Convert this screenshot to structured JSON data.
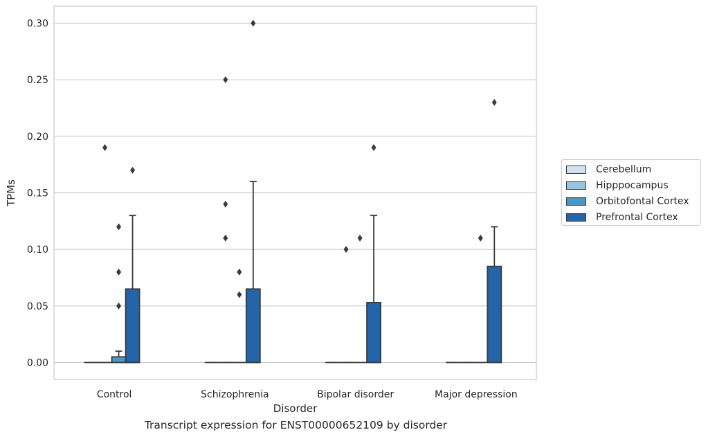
{
  "caption": "Transcript expression for ENST00000652109 by disorder",
  "colors": {
    "Cerebellum": "#d0e1f2",
    "Hipppocampus": "#94c4df",
    "Orbitofontal Cortex": "#4a98c9",
    "Prefrontal Cortex": "#2464a8",
    "grid": "#cccccc",
    "box_edge": "#3a3a3a"
  },
  "chart_data": {
    "type": "boxplot",
    "xlabel": "Disorder",
    "ylabel": "TPMs",
    "ylim": [
      -0.015,
      0.315
    ],
    "yticks": [
      0.0,
      0.05,
      0.1,
      0.15,
      0.2,
      0.25,
      0.3
    ],
    "ytick_labels": [
      "0.00",
      "0.05",
      "0.10",
      "0.15",
      "0.20",
      "0.25",
      "0.30"
    ],
    "grid": true,
    "legend_position": "right",
    "categories": [
      "Control",
      "Schizophrenia",
      "Bipolar disorder",
      "Major depression"
    ],
    "hue_order": [
      "Cerebellum",
      "Hipppocampus",
      "Orbitofontal Cortex",
      "Prefrontal Cortex"
    ],
    "boxes": [
      {
        "category": "Control",
        "hue": "Cerebellum",
        "q1": 0,
        "median": 0,
        "q3": 0,
        "whisker_low": 0,
        "whisker_high": 0,
        "outliers": []
      },
      {
        "category": "Control",
        "hue": "Hipppocampus",
        "q1": 0,
        "median": 0,
        "q3": 0,
        "whisker_low": 0,
        "whisker_high": 0,
        "outliers": [
          0.19
        ]
      },
      {
        "category": "Control",
        "hue": "Orbitofontal Cortex",
        "q1": 0,
        "median": 0,
        "q3": 0.005,
        "whisker_low": 0,
        "whisker_high": 0.01,
        "outliers": [
          0.05,
          0.08,
          0.12
        ]
      },
      {
        "category": "Control",
        "hue": "Prefrontal Cortex",
        "q1": 0,
        "median": 0,
        "q3": 0.065,
        "whisker_low": 0,
        "whisker_high": 0.13,
        "outliers": [
          0.17
        ]
      },
      {
        "category": "Schizophrenia",
        "hue": "Cerebellum",
        "q1": 0,
        "median": 0,
        "q3": 0,
        "whisker_low": 0,
        "whisker_high": 0,
        "outliers": []
      },
      {
        "category": "Schizophrenia",
        "hue": "Hipppocampus",
        "q1": 0,
        "median": 0,
        "q3": 0,
        "whisker_low": 0,
        "whisker_high": 0,
        "outliers": [
          0.11,
          0.14,
          0.25
        ]
      },
      {
        "category": "Schizophrenia",
        "hue": "Orbitofontal Cortex",
        "q1": 0,
        "median": 0,
        "q3": 0,
        "whisker_low": 0,
        "whisker_high": 0,
        "outliers": [
          0.06,
          0.08
        ]
      },
      {
        "category": "Schizophrenia",
        "hue": "Prefrontal Cortex",
        "q1": 0,
        "median": 0,
        "q3": 0.065,
        "whisker_low": 0,
        "whisker_high": 0.16,
        "outliers": [
          0.3
        ]
      },
      {
        "category": "Bipolar disorder",
        "hue": "Cerebellum",
        "q1": 0,
        "median": 0,
        "q3": 0,
        "whisker_low": 0,
        "whisker_high": 0,
        "outliers": []
      },
      {
        "category": "Bipolar disorder",
        "hue": "Hipppocampus",
        "q1": 0,
        "median": 0,
        "q3": 0,
        "whisker_low": 0,
        "whisker_high": 0,
        "outliers": [
          0.1
        ]
      },
      {
        "category": "Bipolar disorder",
        "hue": "Orbitofontal Cortex",
        "q1": 0,
        "median": 0,
        "q3": 0,
        "whisker_low": 0,
        "whisker_high": 0,
        "outliers": [
          0.11
        ]
      },
      {
        "category": "Bipolar disorder",
        "hue": "Prefrontal Cortex",
        "q1": 0,
        "median": 0,
        "q3": 0.053,
        "whisker_low": 0,
        "whisker_high": 0.13,
        "outliers": [
          0.19
        ]
      },
      {
        "category": "Major depression",
        "hue": "Cerebellum",
        "q1": 0,
        "median": 0,
        "q3": 0,
        "whisker_low": 0,
        "whisker_high": 0,
        "outliers": []
      },
      {
        "category": "Major depression",
        "hue": "Hipppocampus",
        "q1": 0,
        "median": 0,
        "q3": 0,
        "whisker_low": 0,
        "whisker_high": 0,
        "outliers": []
      },
      {
        "category": "Major depression",
        "hue": "Orbitofontal Cortex",
        "q1": 0,
        "median": 0,
        "q3": 0,
        "whisker_low": 0,
        "whisker_high": 0,
        "outliers": [
          0.11
        ]
      },
      {
        "category": "Major depression",
        "hue": "Prefrontal Cortex",
        "q1": 0,
        "median": 0,
        "q3": 0.085,
        "whisker_low": 0,
        "whisker_high": 0.12,
        "outliers": [
          0.23
        ]
      }
    ]
  }
}
